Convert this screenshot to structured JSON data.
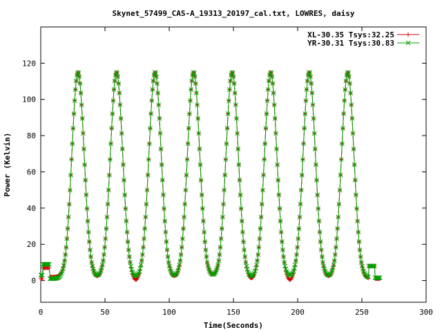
{
  "chart_data": {
    "type": "line",
    "title": "Skynet_57499_CAS-A_19313_20197_cal.txt, LOWRES, daisy",
    "xlabel": "Time(Seconds)",
    "ylabel": "Power (Kelvin)",
    "xlim": [
      0,
      300
    ],
    "ylim": [
      -12,
      140
    ],
    "xticks": [
      0,
      50,
      100,
      150,
      200,
      250,
      300
    ],
    "yticks": [
      0,
      20,
      40,
      60,
      80,
      100,
      120
    ],
    "grid": false,
    "legend_position": "top-right",
    "peaks": {
      "centers": [
        29,
        59,
        89,
        119,
        149,
        179,
        209,
        239
      ],
      "amplitude": 115,
      "sigma": 4.8
    },
    "series": [
      {
        "name": "XL-30.35 Tsys:32.25",
        "marker": "+",
        "color": "#cc0000",
        "trough_values": [
          2.0,
          1.0,
          -1.5,
          1.0,
          2.0,
          -0.5,
          -1.5,
          1.0
        ]
      },
      {
        "name": "YR-30.31 Tsys:30.83",
        "marker": "x",
        "color": "#00a000",
        "trough_values": [
          1.0,
          1.5,
          1.0,
          1.5,
          2.0,
          1.0,
          1.5,
          1.5
        ]
      }
    ]
  }
}
